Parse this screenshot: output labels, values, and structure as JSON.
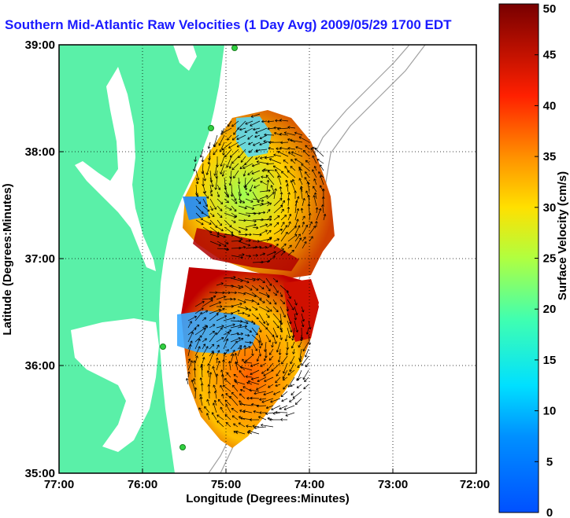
{
  "title": "Southern Mid-Atlantic Raw Velocities (1 Day Avg) 2009/05/29 1700 EDT",
  "map": {
    "x_axis_title": "Longitude (Degrees:Minutes)",
    "y_axis_title": "Latitude (Degrees:Minutes)",
    "x_ticks": [
      "77:00",
      "76:00",
      "75:00",
      "74:00",
      "73:00",
      "72:00"
    ],
    "y_ticks": [
      "39:00",
      "38:00",
      "37:00",
      "36:00",
      "35:00"
    ],
    "lon_range": [
      -77,
      -72
    ],
    "lat_range": [
      35,
      39
    ],
    "land_color": "#5af0a8",
    "grid": "dotted"
  },
  "colorbar": {
    "title": "Surface Velocity (cm/s)",
    "ticks": [
      "50",
      "45",
      "40",
      "35",
      "30",
      "25",
      "20",
      "15",
      "10",
      "5",
      "0"
    ],
    "range": [
      0,
      50
    ],
    "colormap": "jet"
  }
}
